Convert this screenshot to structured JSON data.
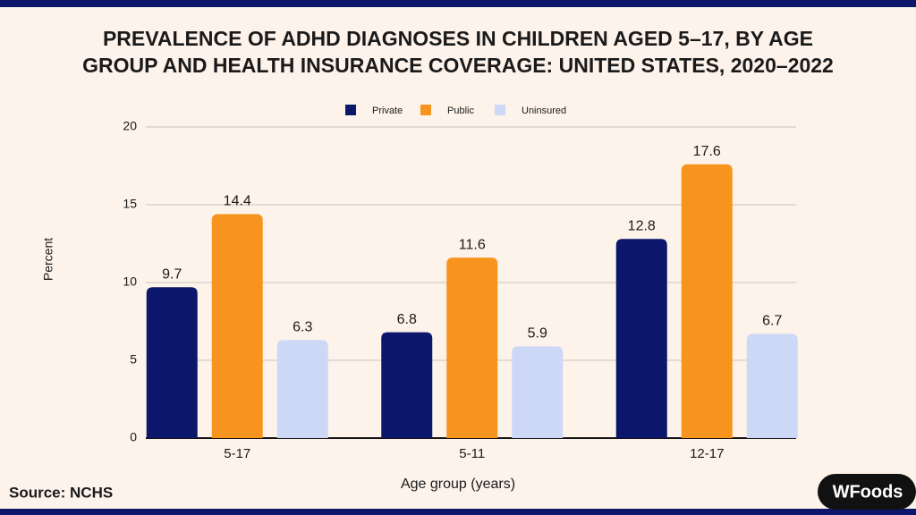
{
  "chart_data": {
    "type": "bar",
    "title": "PREVALENCE OF ADHD DIAGNOSES IN CHILDREN AGED 5–17, BY AGE",
    "subtitle": "GROUP AND HEALTH INSURANCE COVERAGE: UNITED STATES, 2020–2022",
    "x_label": "Age group (years)",
    "y_label": "Percent",
    "categories": [
      "5-17",
      "5-11",
      "12-17"
    ],
    "series": [
      {
        "name": "Private",
        "color": "#0c176b",
        "values": [
          9.7,
          6.8,
          12.8
        ]
      },
      {
        "name": "Public",
        "color": "#f7941d",
        "values": [
          14.4,
          11.6,
          17.6
        ]
      },
      {
        "name": "Uninsured",
        "color": "#cdd8f7",
        "values": [
          6.3,
          5.9,
          6.7
        ]
      }
    ],
    "ylim": [
      0,
      20
    ],
    "yticks": [
      0,
      5,
      10,
      15,
      20
    ],
    "grid": true,
    "legend": "top",
    "source": "Source: NCHS",
    "logo": "WFoods"
  }
}
